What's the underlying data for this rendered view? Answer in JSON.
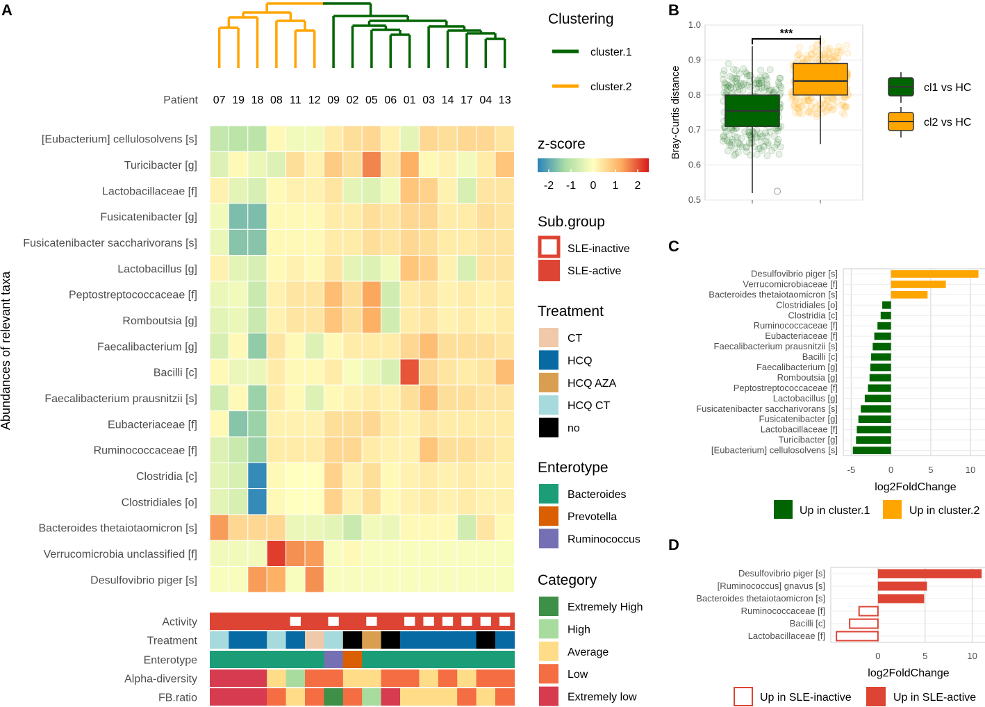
{
  "panels": {
    "a": "A",
    "b": "B",
    "c": "C",
    "d": "D"
  },
  "colors": {
    "cluster1": "#006400",
    "cluster2": "#FFA500",
    "sle_active": "#DD4433",
    "sle_inactive": "#FFFFFF",
    "inactive_border": "#DD4433"
  },
  "dendrogram": {
    "cluster1_label": "cluster.1",
    "cluster2_label": "cluster.2"
  },
  "heatmap": {
    "patient_label": "Patient",
    "y_axis_title": "Abundances of relevant taxa",
    "patients": [
      "07",
      "19",
      "18",
      "08",
      "11",
      "12",
      "09",
      "02",
      "05",
      "06",
      "01",
      "03",
      "14",
      "17",
      "04",
      "13"
    ],
    "clusters": [
      2,
      2,
      2,
      2,
      2,
      2,
      1,
      1,
      1,
      1,
      1,
      1,
      1,
      1,
      1,
      1
    ],
    "taxa": [
      "[Eubacterium] cellulosolvens [s]",
      "Turicibacter [g]",
      "Lactobacillaceae [f]",
      "Fusicatenibacter [g]",
      "Fusicatenibacter saccharivorans [s]",
      "Lactobacillus [g]",
      "Peptostreptococcaceae [f]",
      "Romboutsia [g]",
      "Faecalibacterium [g]",
      "Bacilli [c]",
      "Faecalibacterium prausnitzii [s]",
      "Eubacteriaceae [f]",
      "Ruminococcaceae [f]",
      "Clostridia [c]",
      "Clostridiales [o]",
      "Bacteroides thetaiotaomicron [s]",
      "Verrucomicrobia unclassified [f]",
      "Desulfovibrio piger [s]"
    ],
    "zscores": [
      [
        -0.9,
        -1.0,
        -1.0,
        0.1,
        -0.2,
        -0.2,
        0.3,
        0.5,
        0.6,
        0.2,
        -0.4,
        0.6,
        0.5,
        0.6,
        0.6,
        0.4
      ],
      [
        -0.5,
        0.1,
        -0.3,
        -0.5,
        0.5,
        0.2,
        0.8,
        0.5,
        1.6,
        0.4,
        1.2,
        0.1,
        0.2,
        -0.2,
        0.3,
        0.9
      ],
      [
        0.2,
        -0.4,
        -0.6,
        0.1,
        0.2,
        0.2,
        0.4,
        -0.4,
        -0.5,
        -0.2,
        0.9,
        0.7,
        0.2,
        -0.6,
        0.4,
        0.4
      ],
      [
        -0.2,
        -1.7,
        -1.7,
        0.1,
        0.1,
        0.1,
        0.3,
        0.3,
        0.5,
        0.4,
        0.6,
        0.6,
        0.3,
        0.3,
        0.5,
        0.4
      ],
      [
        -0.3,
        -1.6,
        -1.6,
        0.1,
        0.1,
        0.1,
        0.3,
        0.3,
        0.5,
        0.4,
        0.6,
        0.5,
        0.3,
        0.3,
        0.4,
        0.4
      ],
      [
        0.2,
        -0.4,
        -0.6,
        0.1,
        0.2,
        0.1,
        0.4,
        -0.4,
        -0.5,
        -0.2,
        0.9,
        0.7,
        0.2,
        -0.6,
        0.4,
        0.4
      ],
      [
        -0.3,
        -0.2,
        -0.8,
        0.2,
        0.4,
        0.4,
        1.0,
        0.5,
        1.3,
        -0.7,
        0.3,
        0.4,
        0.2,
        0.3,
        0.2,
        0.3
      ],
      [
        -0.4,
        -0.3,
        -0.8,
        0.2,
        0.4,
        0.4,
        0.9,
        0.5,
        1.2,
        -0.7,
        0.3,
        0.4,
        0.2,
        0.3,
        0.2,
        0.3
      ],
      [
        -0.6,
        0.1,
        -1.5,
        0.4,
        0.1,
        -0.5,
        0.1,
        0.3,
        0.3,
        0.3,
        0.6,
        1.0,
        0.5,
        0.5,
        0.5,
        0.4
      ],
      [
        0.1,
        -0.3,
        -0.3,
        0.3,
        0.1,
        0.1,
        0.3,
        -0.1,
        -0.3,
        -0.6,
        2.0,
        0.6,
        0.4,
        0.3,
        0.4,
        1.0
      ],
      [
        -0.7,
        0.1,
        -1.4,
        0.3,
        0.1,
        -0.5,
        0.1,
        0.2,
        0.3,
        0.2,
        0.5,
        1.0,
        0.5,
        0.5,
        0.4,
        0.4
      ],
      [
        0.1,
        -1.6,
        -1.4,
        0.2,
        0.2,
        0.2,
        0.5,
        0.5,
        0.6,
        0.3,
        0.2,
        0.4,
        0.3,
        0.3,
        0.3,
        0.3
      ],
      [
        -0.5,
        -0.8,
        -1.4,
        0.3,
        0.3,
        0.3,
        0.6,
        0.6,
        0.3,
        0.2,
        0.2,
        0.9,
        0.5,
        0.5,
        0.4,
        0.3
      ],
      [
        -0.4,
        -0.6,
        -2.4,
        0.1,
        0.0,
        0.0,
        0.7,
        0.2,
        0.5,
        0.1,
        0.2,
        0.3,
        0.2,
        0.3,
        0.2,
        0.2
      ],
      [
        -0.4,
        -0.6,
        -2.4,
        0.1,
        0.0,
        0.0,
        0.7,
        0.2,
        0.5,
        0.1,
        0.2,
        0.3,
        0.2,
        0.3,
        0.2,
        0.2
      ],
      [
        1.4,
        0.6,
        0.6,
        0.6,
        -0.3,
        -0.3,
        -0.4,
        -0.8,
        -0.2,
        -0.3,
        0.1,
        0.1,
        0.1,
        -0.7,
        0.4,
        0.1
      ],
      [
        -0.2,
        -0.2,
        -0.2,
        2.2,
        1.5,
        1.4,
        -0.1,
        0.1,
        -0.1,
        -0.1,
        -0.1,
        -0.1,
        -0.1,
        -0.1,
        -0.1,
        -0.1
      ],
      [
        -0.1,
        -0.1,
        1.4,
        1.2,
        -0.1,
        1.5,
        -0.1,
        -0.1,
        -0.1,
        -0.1,
        -0.1,
        -0.1,
        -0.1,
        -0.1,
        -0.1,
        -0.1
      ]
    ],
    "annotation_rows": [
      "Activity",
      "Treatment",
      "Enterotype",
      "Alpha-diversity",
      "FB.ratio"
    ],
    "activity": [
      "SLE-active",
      "SLE-active",
      "SLE-active",
      "SLE-active",
      "SLE-inactive",
      "SLE-active",
      "SLE-inactive",
      "SLE-active",
      "SLE-inactive",
      "SLE-active",
      "SLE-inactive",
      "SLE-inactive",
      "SLE-inactive",
      "SLE-inactive",
      "SLE-inactive",
      "SLE-inactive"
    ],
    "treatment": [
      "HCQ CT",
      "HCQ",
      "HCQ",
      "HCQ CT",
      "HCQ",
      "CT",
      "HCQ CT",
      "no",
      "HCQ AZA",
      "no",
      "HCQ",
      "HCQ",
      "HCQ",
      "HCQ",
      "no",
      "HCQ"
    ],
    "enterotype": [
      "Bacteroides",
      "Bacteroides",
      "Bacteroides",
      "Bacteroides",
      "Bacteroides",
      "Bacteroides",
      "Ruminococcus",
      "Prevotella",
      "Bacteroides",
      "Bacteroides",
      "Bacteroides",
      "Bacteroides",
      "Bacteroides",
      "Bacteroides",
      "Bacteroides",
      "Bacteroides"
    ],
    "alpha_diversity": [
      "Extremely low",
      "Extremely low",
      "Extremely low",
      "Average",
      "High",
      "Low",
      "Low",
      "Average",
      "Average",
      "Low",
      "Low",
      "Average",
      "Low",
      "Average",
      "Low",
      "Low"
    ],
    "fb_ratio": [
      "Extremely low",
      "Extremely low",
      "Extremely low",
      "Low",
      "Average",
      "Low",
      "Extremely High",
      "Low",
      "High",
      "Extremely low",
      "Average",
      "Average",
      "Average",
      "Low",
      "Average",
      "Low"
    ]
  },
  "legends": {
    "clustering": {
      "title": "Clustering",
      "items": [
        "cluster.1",
        "cluster.2"
      ]
    },
    "zscore": {
      "title": "z-score",
      "ticks": [
        "-2",
        "-1",
        "0",
        "1",
        "2"
      ]
    },
    "subgroup": {
      "title": "Sub.group",
      "items": [
        "SLE-inactive",
        "SLE-active"
      ]
    },
    "treatment": {
      "title": "Treatment",
      "items": [
        "CT",
        "HCQ",
        "HCQ AZA",
        "HCQ CT",
        "no"
      ],
      "colors": [
        "#EFC9A9",
        "#076AA3",
        "#D89F50",
        "#A7DADC",
        "#000000"
      ]
    },
    "enterotype": {
      "title": "Enterotype",
      "items": [
        "Bacteroides",
        "Prevotella",
        "Ruminococcus"
      ],
      "colors": [
        "#1B9E77",
        "#D95F02",
        "#7570B3"
      ]
    },
    "category": {
      "title": "Category",
      "items": [
        "Extremely High",
        "High",
        "Average",
        "Low",
        "Extremely low"
      ],
      "colors": [
        "#3E8F48",
        "#A8DC9E",
        "#FFDC88",
        "#F46D43",
        "#D73B50"
      ]
    }
  },
  "chart_data": [
    {
      "type": "heatmap",
      "title": "Abundances of relevant taxa (z-score)",
      "note": "values stored in heatmap.zscores; rows = heatmap.taxa, columns = heatmap.patients",
      "zlim": [
        -2.5,
        2.5
      ]
    },
    {
      "type": "box",
      "panel": "B",
      "ylabel": "Bray-Curtis distance",
      "ylim": [
        0.5,
        1.0
      ],
      "yticks": [
        "0.5",
        "0.6",
        "0.7",
        "0.8",
        "0.9",
        "1.0"
      ],
      "significance": "***",
      "series": [
        {
          "name": "cl1 vs HC",
          "color": "#006400",
          "min": 0.52,
          "q1": 0.71,
          "median": 0.755,
          "q3": 0.8,
          "max": 0.94,
          "outliers": [
            0.525
          ]
        },
        {
          "name": "cl2 vs HC",
          "color": "#FFA500",
          "min": 0.66,
          "q1": 0.8,
          "median": 0.84,
          "q3": 0.89,
          "max": 0.97,
          "outliers": []
        }
      ]
    },
    {
      "type": "bar",
      "panel": "C",
      "orientation": "horizontal",
      "xlabel": "log2FoldChange",
      "xlim": [
        -6,
        12
      ],
      "xticks": [
        "-5",
        "0",
        "5",
        "10"
      ],
      "categories": [
        "Desulfovibrio piger [s]",
        "Verrucomicrobiaceae [f]",
        "Bacteroides thetaiotaomicron [s]",
        "Clostridiales [o]",
        "Clostridia [c]",
        "Ruminococcaceae [f]",
        "Eubacteriaceae [f]",
        "Faecalibacterium prausnitzii [s]",
        "Bacilli [c]",
        "Faecalibacterium [g]",
        "Romboutsia [g]",
        "Peptostreptococcaceae [f]",
        "Lactobacillus [g]",
        "Fusicatenibacter saccharivorans [s]",
        "Fusicatenibacter [g]",
        "Lactobacillaceae [f]",
        "Turicibacter [g]",
        "[Eubacterium] cellulosolvens [s]"
      ],
      "values": [
        11.0,
        6.9,
        4.6,
        -1.1,
        -1.3,
        -1.7,
        -2.1,
        -2.3,
        -2.5,
        -2.6,
        -2.7,
        -2.9,
        -3.3,
        -3.8,
        -4.1,
        -4.3,
        -4.4,
        -4.8
      ],
      "legend": [
        "Up in cluster.1",
        "Up in cluster.2"
      ]
    },
    {
      "type": "bar",
      "panel": "D",
      "orientation": "horizontal",
      "xlabel": "log2FoldChange",
      "xlim": [
        -5,
        11.5
      ],
      "xticks": [
        "0",
        "5",
        "10"
      ],
      "categories": [
        "Desulfovibrio piger [s]",
        "[Ruminococcus] gnavus [s]",
        "Bacteroides thetaiotaomicron [s]",
        "Ruminococcaceae [f]",
        "Bacilli [c]",
        "Lactobacillaceae [f]"
      ],
      "values": [
        11.0,
        5.2,
        4.9,
        -2.0,
        -3.0,
        -4.4
      ],
      "legend": [
        "Up in SLE-inactive",
        "Up in SLE-active"
      ]
    }
  ]
}
